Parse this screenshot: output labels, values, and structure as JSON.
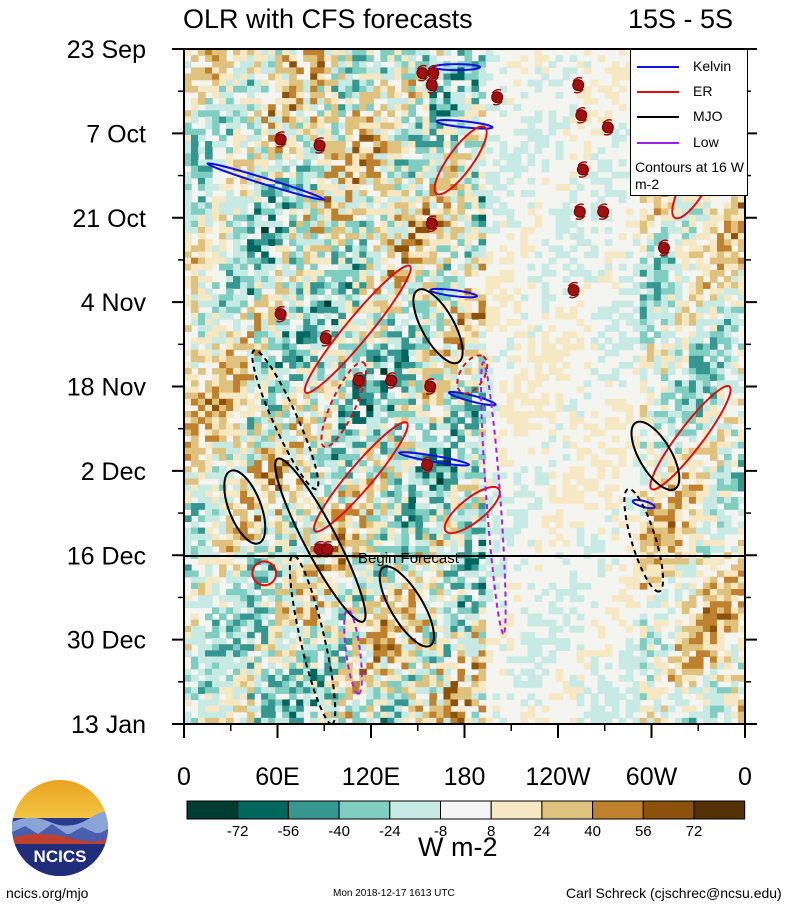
{
  "header": {
    "title": "OLR with CFS forecasts",
    "lat_range": "15S - 5S"
  },
  "legend": {
    "items": [
      {
        "label": "Kelvin",
        "color": "#1010e0"
      },
      {
        "label": "ER",
        "color": "#e01010"
      },
      {
        "label": "MJO",
        "color": "#000000"
      },
      {
        "label": "Low",
        "color": "#a020f0"
      }
    ],
    "note": "Contours at 16 W m-2"
  },
  "annotations": {
    "begin_forecast": "Begin Forecast"
  },
  "colorbar": {
    "ticks": [
      "-72",
      "-56",
      "-40",
      "-24",
      "-8",
      "8",
      "24",
      "40",
      "56",
      "72"
    ],
    "colors": [
      "#003c30",
      "#01665e",
      "#35978f",
      "#80cdc1",
      "#c7eae5",
      "#f5f5f5",
      "#f6e8c3",
      "#dfc27d",
      "#bf812d",
      "#8c510a",
      "#543005"
    ],
    "units": "W m-2"
  },
  "footer": {
    "left": "ncics.org/mjo",
    "mid": "Mon 2018-12-17 1613 UTC",
    "right": "Carl Schreck (cjschrec@ncsu.edu)"
  },
  "logo": {
    "text": "NCICS"
  },
  "chart_data": {
    "type": "heatmap",
    "title": "OLR with CFS forecasts",
    "subtitle": "15S - 5S",
    "x_ticks": [
      "0",
      "60E",
      "120E",
      "180",
      "120W",
      "60W",
      "0"
    ],
    "x_tick_values": [
      0,
      60,
      120,
      180,
      240,
      300,
      360
    ],
    "xlim": [
      0,
      360
    ],
    "y_ticks": [
      "23 Sep",
      "7 Oct",
      "21 Oct",
      "4 Nov",
      "18 Nov",
      "2 Dec",
      "16 Dec",
      "30 Dec",
      "13 Jan"
    ],
    "y_tick_values": [
      "2018-09-23",
      "2018-10-07",
      "2018-10-21",
      "2018-11-04",
      "2018-11-18",
      "2018-12-02",
      "2018-12-16",
      "2018-12-30",
      "2019-01-13"
    ],
    "ylim": [
      "2018-09-23",
      "2019-01-13"
    ],
    "begin_forecast_date": "2018-12-16",
    "contour_interval": 16,
    "units": "W m-2",
    "kelvin_contours": [
      {
        "lon": [
          15,
          90
        ],
        "date": [
          "2018-10-12",
          "2018-10-18"
        ]
      },
      {
        "lon": [
          138,
          183
        ],
        "date": [
          "2018-11-29",
          "2018-12-01"
        ]
      },
      {
        "lon": [
          160,
          190
        ],
        "date": [
          "2018-09-26",
          "2018-09-26"
        ]
      },
      {
        "lon": [
          162,
          198
        ],
        "date": [
          "2018-10-05",
          "2018-10-06"
        ]
      },
      {
        "lon": [
          158,
          188
        ],
        "date": [
          "2018-11-02",
          "2018-11-03"
        ]
      },
      {
        "lon": [
          170,
          200
        ],
        "date": [
          "2018-11-19",
          "2018-11-21"
        ]
      },
      {
        "lon": [
          288,
          302
        ],
        "date": [
          "2018-12-07",
          "2018-12-08"
        ]
      }
    ],
    "er_contours": [
      {
        "lon": [
          78,
          145
        ],
        "date": [
          "2018-11-19",
          "2018-10-29"
        ]
      },
      {
        "lon": [
          84,
          143
        ],
        "date": [
          "2018-12-12",
          "2018-11-24"
        ]
      },
      {
        "lon": [
          162,
          193
        ],
        "date": [
          "2018-10-17",
          "2018-10-06"
        ]
      },
      {
        "lon": [
          168,
          202
        ],
        "date": [
          "2018-12-12",
          "2018-12-05"
        ]
      },
      {
        "lon": [
          300,
          350
        ],
        "date": [
          "2018-12-05",
          "2018-11-18"
        ]
      },
      {
        "lon": [
          315,
          340
        ],
        "date": [
          "2018-10-21",
          "2018-10-10"
        ]
      },
      {
        "lon": [
          45,
          58
        ],
        "date": [
          "2018-12-20",
          "2018-12-18"
        ]
      }
    ],
    "mjo_contours": [
      {
        "lon": [
          30,
          48
        ],
        "date": [
          "2018-12-02",
          "2018-12-14"
        ]
      },
      {
        "lon": [
          60,
          115
        ],
        "date": [
          "2018-11-30",
          "2018-12-27"
        ]
      },
      {
        "lon": [
          128,
          158
        ],
        "date": [
          "2018-12-18",
          "2018-12-31"
        ]
      },
      {
        "lon": [
          150,
          176
        ],
        "date": [
          "2018-11-02",
          "2018-11-14"
        ]
      },
      {
        "lon": [
          290,
          315
        ],
        "date": [
          "2018-11-24",
          "2018-12-05"
        ]
      }
    ],
    "low_contours": [
      {
        "lon": [
          192,
          205
        ],
        "date": [
          "2018-11-14",
          "2018-12-29"
        ]
      },
      {
        "lon": [
          105,
          112
        ],
        "date": [
          "2018-12-25",
          "2019-01-08"
        ]
      }
    ]
  }
}
